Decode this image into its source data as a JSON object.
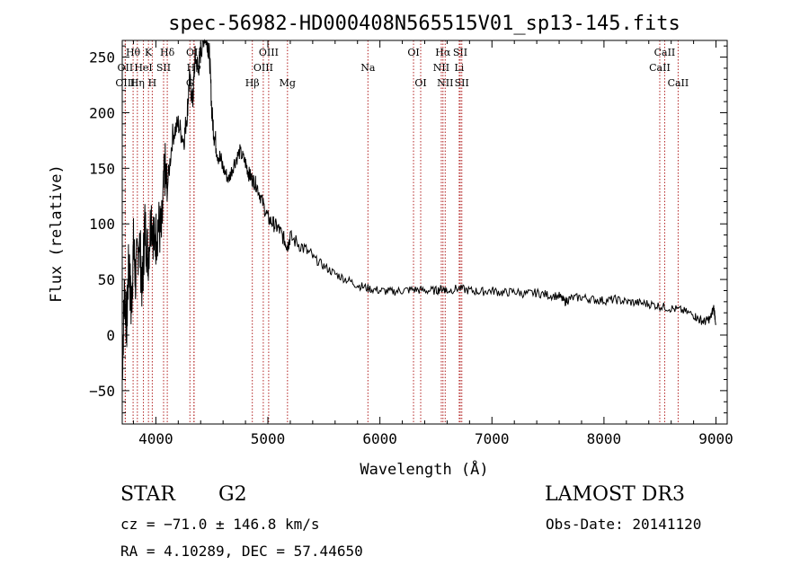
{
  "chart_data": {
    "type": "line",
    "title": "spec-56982-HD000408N565515V01_sp13-145.fits",
    "xlabel": "Wavelength (Å)",
    "ylabel": "Flux (relative)",
    "xlim": [
      3700,
      9100
    ],
    "ylim": [
      -80,
      265
    ],
    "xticks": [
      4000,
      5000,
      6000,
      7000,
      8000,
      9000
    ],
    "yticks": [
      -50,
      0,
      50,
      100,
      150,
      200,
      250
    ],
    "series": [
      {
        "name": "spectrum",
        "x": [
          3700,
          3720,
          3740,
          3760,
          3780,
          3800,
          3820,
          3850,
          3880,
          3900,
          3930,
          3960,
          3990,
          4020,
          4050,
          4080,
          4100,
          4150,
          4200,
          4250,
          4280,
          4300,
          4330,
          4350,
          4380,
          4400,
          4430,
          4460,
          4480,
          4500,
          4520,
          4550,
          4600,
          4650,
          4700,
          4750,
          4800,
          4830,
          4861,
          4900,
          4950,
          5000,
          5050,
          5100,
          5150,
          5175,
          5200,
          5300,
          5400,
          5500,
          5600,
          5700,
          5800,
          5893,
          6000,
          6100,
          6200,
          6300,
          6400,
          6500,
          6563,
          6600,
          6700,
          6800,
          6900,
          7000,
          7100,
          7200,
          7300,
          7400,
          7500,
          7600,
          7650,
          7700,
          7800,
          7900,
          8000,
          8100,
          8200,
          8300,
          8400,
          8500,
          8600,
          8700,
          8800,
          8850,
          8900,
          8950,
          8980,
          9000
        ],
        "y": [
          -30,
          40,
          10,
          70,
          20,
          80,
          50,
          90,
          40,
          100,
          70,
          110,
          80,
          100,
          90,
          150,
          130,
          180,
          190,
          175,
          200,
          230,
          210,
          250,
          240,
          255,
          270,
          265,
          250,
          200,
          180,
          165,
          150,
          140,
          155,
          165,
          155,
          145,
          140,
          135,
          120,
          105,
          100,
          95,
          85,
          80,
          88,
          80,
          70,
          62,
          55,
          50,
          45,
          42,
          40,
          39,
          40,
          41,
          40,
          40,
          42,
          40,
          42,
          40,
          39,
          40,
          38,
          39,
          37,
          38,
          36,
          35,
          30,
          33,
          34,
          32,
          31,
          32,
          30,
          29,
          28,
          26,
          24,
          22,
          18,
          14,
          12,
          15,
          25,
          10
        ]
      }
    ],
    "lines": [
      {
        "label": "Hθ",
        "wl": 3797,
        "row": 0
      },
      {
        "label": "K",
        "wl": 3934,
        "row": 0
      },
      {
        "label": "Hδ",
        "wl": 4102,
        "row": 0
      },
      {
        "label": "OII",
        "wl": 4341,
        "row": 0
      },
      {
        "label": "OIII",
        "wl": 5007,
        "row": 0
      },
      {
        "label": "OI",
        "wl": 6300,
        "row": 0
      },
      {
        "label": "Hα",
        "wl": 6563,
        "row": 0
      },
      {
        "label": "SII",
        "wl": 6717,
        "row": 0
      },
      {
        "label": "CaII",
        "wl": 8542,
        "row": 0
      },
      {
        "label": "OII",
        "wl": 3727,
        "row": 1
      },
      {
        "label": "HeI",
        "wl": 3889,
        "row": 1
      },
      {
        "label": "SII",
        "wl": 4069,
        "row": 1
      },
      {
        "label": "Hγ",
        "wl": 4340,
        "row": 1
      },
      {
        "label": "OIII",
        "wl": 4959,
        "row": 1
      },
      {
        "label": "Na",
        "wl": 5893,
        "row": 1
      },
      {
        "label": "NII",
        "wl": 6548,
        "row": 1
      },
      {
        "label": "Li",
        "wl": 6708,
        "row": 1
      },
      {
        "label": "CaII",
        "wl": 8498,
        "row": 1
      },
      {
        "label": "OIII",
        "wl": 3727,
        "row": 2
      },
      {
        "label": "Hη",
        "wl": 3835,
        "row": 2
      },
      {
        "label": "H",
        "wl": 3968,
        "row": 2
      },
      {
        "label": "G",
        "wl": 4304,
        "row": 2
      },
      {
        "label": "Hβ",
        "wl": 4861,
        "row": 2
      },
      {
        "label": "Mg",
        "wl": 5175,
        "row": 2
      },
      {
        "label": "OI",
        "wl": 6364,
        "row": 2
      },
      {
        "label": "NII",
        "wl": 6583,
        "row": 2
      },
      {
        "label": "SII",
        "wl": 6731,
        "row": 2
      },
      {
        "label": "CaII",
        "wl": 8662,
        "row": 2
      }
    ]
  },
  "info": {
    "object_type": "STAR",
    "subclass": "G2",
    "survey": "LAMOST DR3",
    "cz": "cz = −71.0 ± 146.8 km/s",
    "obs_date": "Obs-Date: 20141120",
    "coords": "RA =   4.10289, DEC =  57.44650"
  },
  "colors": {
    "line_marker": "#b22222",
    "spectrum": "#000000",
    "axes": "#000000"
  }
}
